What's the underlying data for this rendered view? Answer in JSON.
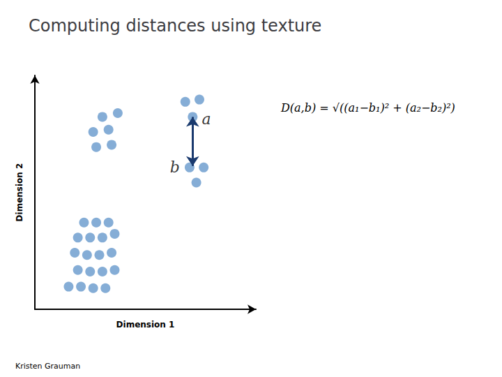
{
  "chart_data": {
    "type": "scatter",
    "title": "Computing distances using texture",
    "xlabel": "Dimension 1",
    "ylabel": "Dimension 2",
    "x": [
      0.8,
      1.0,
      1.2,
      0.7,
      0.9,
      1.1,
      1.3,
      0.65,
      0.85,
      1.05,
      1.25,
      0.7,
      0.9,
      1.1,
      1.3,
      0.75,
      0.95,
      1.15,
      0.55,
      1.1,
      1.35,
      0.95,
      1.2,
      1.0,
      1.25,
      2.45,
      2.68,
      2.57,
      2.52,
      2.75,
      2.63
    ],
    "values": [
      1.15,
      1.15,
      1.15,
      0.95,
      0.95,
      0.95,
      1.0,
      0.75,
      0.72,
      0.72,
      0.75,
      0.52,
      0.5,
      0.5,
      0.52,
      0.3,
      0.28,
      0.28,
      0.3,
      2.55,
      2.6,
      2.35,
      2.38,
      2.15,
      2.18,
      2.75,
      2.78,
      2.55,
      1.88,
      1.88,
      1.68
    ],
    "color": "#6699cc",
    "arrow": {
      "from": [
        2.57,
        2.55
      ],
      "to": [
        2.57,
        1.9
      ],
      "color": "#1a3a6e"
    },
    "annotations": [
      {
        "text": "a",
        "x": 2.72,
        "y": 2.52
      },
      {
        "text": "b",
        "x": 2.2,
        "y": 1.88
      }
    ],
    "formula": "D(a,b) = √((a₁−b₁)² + (a₂−b₂)²)",
    "credit": "Kristen Grauman",
    "xlim": [
      0,
      3.6
    ],
    "ylim": [
      0,
      3.1
    ],
    "tick_labels": false,
    "grid": false
  }
}
